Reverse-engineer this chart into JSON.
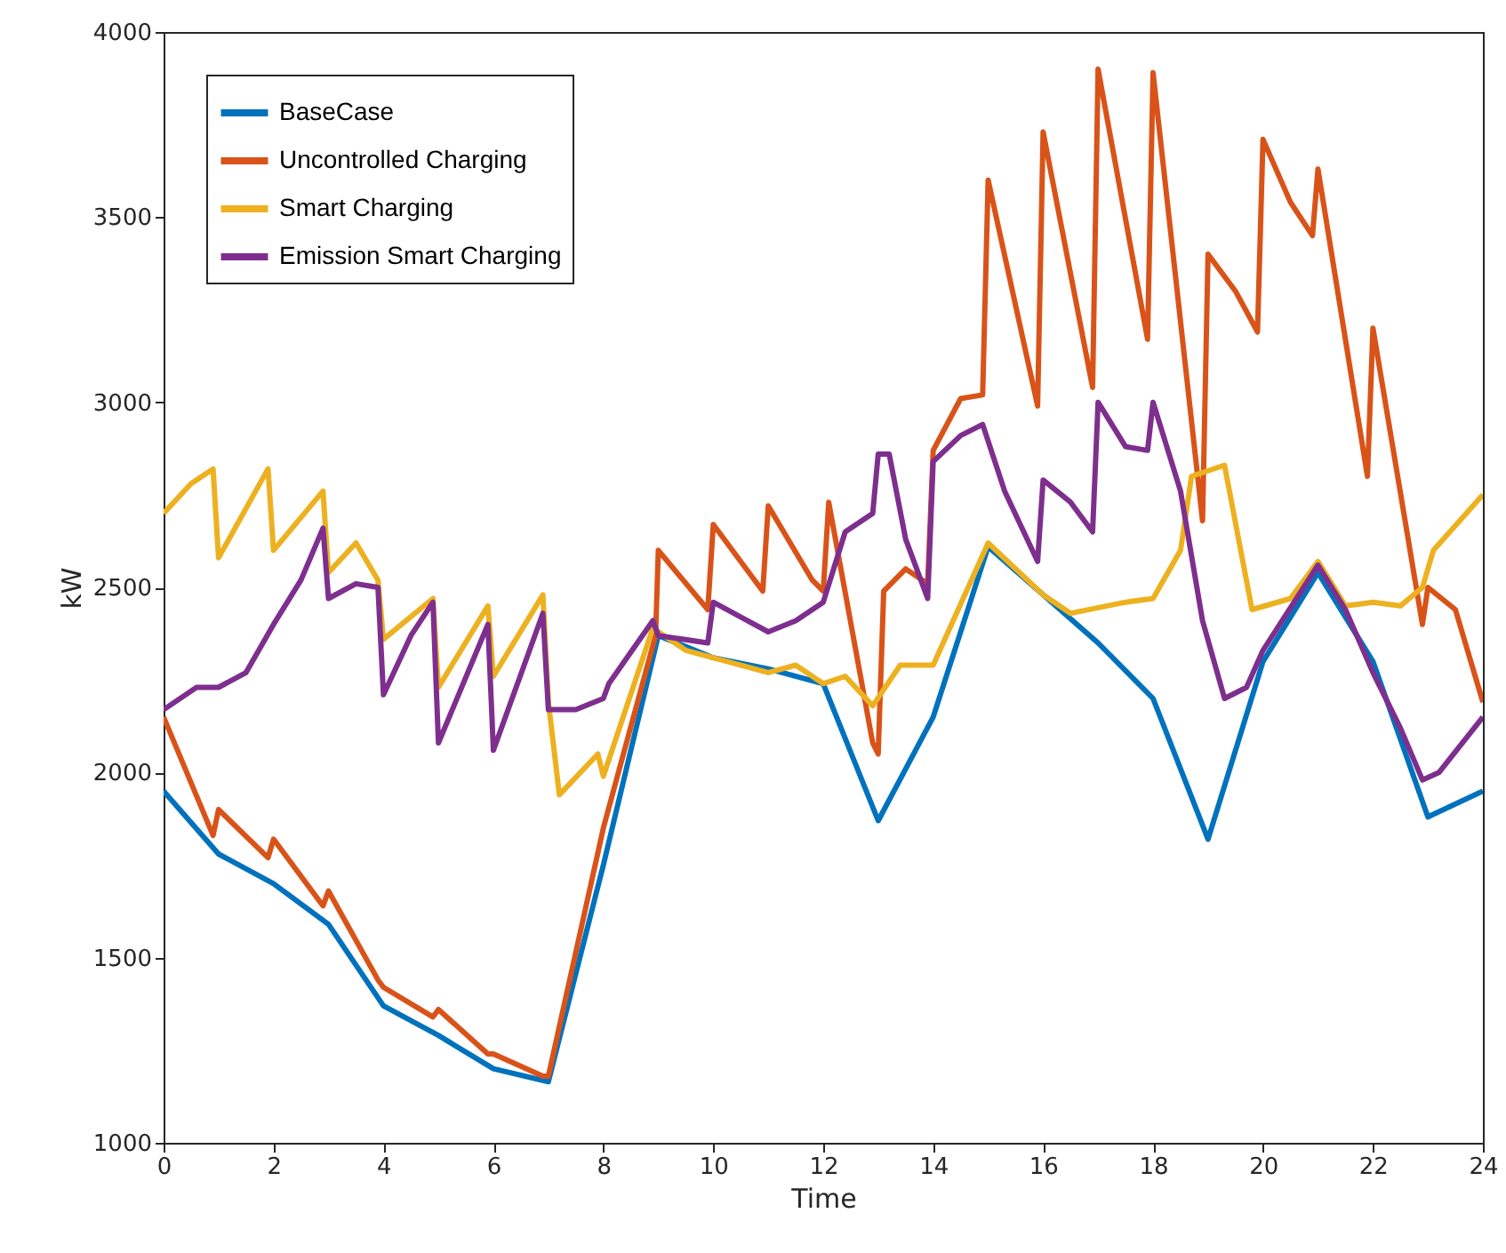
{
  "chart_data": {
    "type": "line",
    "xlabel": "Time",
    "ylabel": "kW",
    "xlim": [
      0,
      24
    ],
    "ylim": [
      1000,
      4000
    ],
    "xticks": [
      0,
      2,
      4,
      6,
      8,
      10,
      12,
      14,
      16,
      18,
      20,
      22,
      24
    ],
    "yticks": [
      1000,
      1500,
      2000,
      2500,
      3000,
      3500,
      4000
    ],
    "grid": false,
    "legend": "top left",
    "series": [
      {
        "name": "BaseCase",
        "color": "#0072bd",
        "x": [
          0,
          1,
          2,
          3,
          4,
          5,
          6,
          7,
          8,
          9,
          10,
          11,
          12,
          13,
          14,
          15,
          16,
          17,
          18,
          19,
          20,
          21,
          22,
          23,
          24
        ],
        "values": [
          1950,
          1780,
          1700,
          1590,
          1370,
          1290,
          1200,
          1165,
          1750,
          2370,
          2310,
          2280,
          2240,
          1870,
          2150,
          2610,
          2480,
          2350,
          2200,
          1820,
          2300,
          2540,
          2300,
          1880,
          1950
        ]
      },
      {
        "name": "Uncontrolled Charging",
        "color": "#d95319",
        "x": [
          0,
          0.9,
          1,
          1.9,
          2,
          2.9,
          3,
          3.9,
          4,
          4.9,
          5,
          5.9,
          6,
          6.9,
          7,
          8,
          8.95,
          9,
          9.9,
          10,
          10.9,
          11,
          11.8,
          12,
          12.1,
          12.9,
          13,
          13.1,
          13.5,
          13.9,
          14,
          14.5,
          14.9,
          15,
          15.9,
          16,
          16.9,
          17,
          17.9,
          18,
          18.9,
          19,
          19.5,
          19.9,
          20,
          20.5,
          20.9,
          21,
          21.9,
          22,
          22.9,
          23,
          23.5,
          24
        ],
        "values": [
          2150,
          1830,
          1900,
          1770,
          1820,
          1640,
          1680,
          1440,
          1420,
          1340,
          1360,
          1240,
          1240,
          1180,
          1180,
          1850,
          2370,
          2600,
          2440,
          2670,
          2490,
          2720,
          2520,
          2490,
          2730,
          2080,
          2050,
          2490,
          2550,
          2510,
          2870,
          3010,
          3020,
          3600,
          2990,
          3730,
          3040,
          3900,
          3170,
          3890,
          2680,
          3400,
          3300,
          3190,
          3710,
          3540,
          3450,
          3630,
          2800,
          3200,
          2400,
          2500,
          2440,
          2190
        ]
      },
      {
        "name": "Smart Charging",
        "color": "#edb120",
        "x": [
          0,
          0.5,
          0.9,
          1,
          1.9,
          2,
          2.9,
          3,
          3.5,
          3.9,
          4,
          4.9,
          5,
          5.9,
          6,
          6.9,
          7,
          7.2,
          7.9,
          8,
          8.9,
          9.5,
          11,
          11.5,
          12,
          12.4,
          12.9,
          13.4,
          14,
          15,
          16,
          16.5,
          17.5,
          18,
          18.5,
          18.7,
          19.3,
          19.8,
          20.5,
          21,
          21.5,
          22,
          22.5,
          22.9,
          23.1,
          24
        ],
        "values": [
          2700,
          2780,
          2820,
          2580,
          2820,
          2600,
          2760,
          2540,
          2620,
          2520,
          2360,
          2470,
          2230,
          2450,
          2260,
          2480,
          2190,
          1940,
          2050,
          1990,
          2390,
          2330,
          2270,
          2290,
          2240,
          2260,
          2180,
          2290,
          2290,
          2620,
          2480,
          2430,
          2460,
          2470,
          2600,
          2800,
          2830,
          2440,
          2470,
          2570,
          2450,
          2460,
          2450,
          2500,
          2600,
          2750
        ]
      },
      {
        "name": "Emission Smart Charging",
        "color": "#7e2f8e",
        "x": [
          0,
          0.6,
          1,
          1.5,
          2,
          2.5,
          2.9,
          3,
          3.5,
          3.9,
          4,
          4.5,
          4.9,
          5,
          5.9,
          6,
          6.9,
          7,
          7.5,
          8,
          8.1,
          8.9,
          9,
          9.9,
          10,
          10.5,
          11,
          11.5,
          12,
          12.4,
          12.9,
          13,
          13.2,
          13.5,
          13.9,
          14,
          14.5,
          14.9,
          15.3,
          15.9,
          16,
          16.5,
          16.9,
          17,
          17.5,
          17.9,
          18,
          18.5,
          18.9,
          19.3,
          19.7,
          20,
          21,
          21.5,
          22,
          22.5,
          22.9,
          23.2,
          24
        ],
        "values": [
          2170,
          2230,
          2230,
          2270,
          2400,
          2520,
          2660,
          2470,
          2510,
          2500,
          2210,
          2370,
          2460,
          2080,
          2400,
          2060,
          2430,
          2170,
          2170,
          2200,
          2240,
          2410,
          2370,
          2350,
          2460,
          2420,
          2380,
          2410,
          2460,
          2650,
          2700,
          2860,
          2860,
          2630,
          2470,
          2840,
          2910,
          2940,
          2760,
          2570,
          2790,
          2730,
          2650,
          3000,
          2880,
          2870,
          3000,
          2760,
          2410,
          2200,
          2230,
          2330,
          2560,
          2440,
          2270,
          2120,
          1980,
          2000,
          2150
        ]
      }
    ]
  }
}
